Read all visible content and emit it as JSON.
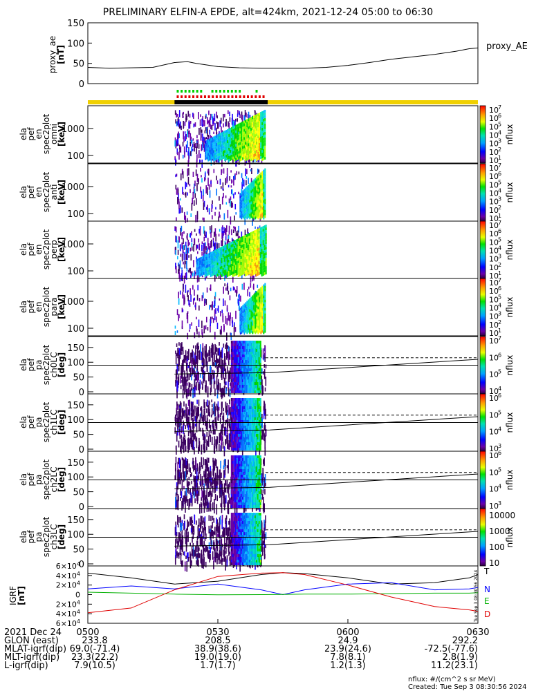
{
  "title": "PRELIMINARY ELFIN-A EPDE, alt=424km, 2021-12-24 05:00 to 06:30",
  "ae_panel": {
    "ylabel": "proxy_ae",
    "yunit": "[nT]",
    "legend": "proxy_AE",
    "yticks": [
      "150",
      "100",
      "50",
      "0"
    ]
  },
  "spec_panels": [
    {
      "ylabel": [
        "ela",
        "pef",
        "en",
        "spec2plot",
        "omni"
      ],
      "yunit": "[keV]",
      "yticks": [
        "1000",
        "100"
      ]
    },
    {
      "ylabel": [
        "ela",
        "pef",
        "en",
        "spec2plot",
        "anti"
      ],
      "yunit": "[keV]",
      "yticks": [
        "1000",
        "100"
      ]
    },
    {
      "ylabel": [
        "ela",
        "pef",
        "en",
        "spec2plot",
        "perp"
      ],
      "yunit": "[keV]",
      "yticks": [
        "1000",
        "100"
      ]
    },
    {
      "ylabel": [
        "ela",
        "pef",
        "en",
        "spec2plot",
        "para"
      ],
      "yunit": "[keV]",
      "yticks": [
        "1000",
        "100"
      ]
    }
  ],
  "pa_panels": [
    {
      "ylabel": [
        "ela",
        "pef",
        "pa",
        "spec2plot",
        "ch0LC"
      ],
      "yunit": "[deg]",
      "yticks": [
        "150",
        "100",
        "50",
        "0"
      ]
    },
    {
      "ylabel": [
        "ela",
        "pef",
        "pa",
        "spec2plot",
        "ch1LC"
      ],
      "yunit": "[deg]",
      "yticks": [
        "150",
        "100",
        "50",
        "0"
      ]
    },
    {
      "ylabel": [
        "ela",
        "pef",
        "pa",
        "spec2plot",
        "ch2LC"
      ],
      "yunit": "[deg]",
      "yticks": [
        "150",
        "100",
        "50",
        "0"
      ]
    },
    {
      "ylabel": [
        "ela",
        "pef",
        "pa",
        "spec2plot",
        "ch3LC"
      ],
      "yunit": "[deg]",
      "yticks": [
        "150",
        "100",
        "50",
        "0"
      ]
    }
  ],
  "colorbars": {
    "unit": "nflux",
    "spec": [
      {
        "major": [
          "10",
          "10",
          "10",
          "10",
          "10",
          "10",
          "10"
        ],
        "exp": [
          "7",
          "6",
          "5",
          "4",
          "3",
          "2",
          "1"
        ]
      },
      {
        "major": [
          "10",
          "10",
          "10",
          "10",
          "10",
          "10",
          "10"
        ],
        "exp": [
          "7",
          "6",
          "5",
          "4",
          "3",
          "2",
          "1"
        ]
      },
      {
        "major": [
          "10",
          "10",
          "10",
          "10",
          "10",
          "10",
          "10"
        ],
        "exp": [
          "7",
          "6",
          "5",
          "4",
          "3",
          "2",
          "1"
        ]
      },
      {
        "major": [
          "10",
          "10",
          "10",
          "10",
          "10",
          "10",
          "10"
        ],
        "exp": [
          "7",
          "6",
          "5",
          "4",
          "3",
          "2",
          "1"
        ]
      }
    ],
    "pa": [
      {
        "major": [
          "10",
          "10",
          "10",
          "10"
        ],
        "exp": [
          "7",
          "6",
          "5",
          "4"
        ]
      },
      {
        "major": [
          "10",
          "10",
          "10",
          "10"
        ],
        "exp": [
          "6",
          "5",
          "4",
          "3"
        ]
      },
      {
        "major": [
          "10",
          "10",
          "10",
          "10"
        ],
        "exp": [
          "6",
          "5",
          "4",
          "3"
        ]
      },
      {
        "plain": [
          "10000",
          "1000",
          "100",
          "10"
        ]
      }
    ]
  },
  "igrf_panel": {
    "ylabel": "IGRF",
    "yunit": "[nT]",
    "yticks": [
      {
        "m": "6",
        "e": "4",
        "sign": ""
      },
      {
        "m": "4",
        "e": "4",
        "sign": ""
      },
      {
        "m": "2",
        "e": "4",
        "sign": ""
      },
      {
        "m": "0",
        "e": "",
        "sign": ""
      },
      {
        "m": "2",
        "e": "4",
        "sign": "−"
      },
      {
        "m": "4",
        "e": "4",
        "sign": "−"
      },
      {
        "m": "6",
        "e": "4",
        "sign": "−"
      }
    ],
    "legend": [
      {
        "label": "T",
        "color": "#000000"
      },
      {
        "label": "N",
        "color": "#0000ff"
      },
      {
        "label": "E",
        "color": "#00b000"
      },
      {
        "label": "D",
        "color": "#e00000"
      }
    ]
  },
  "side_stamp": "Tue Sep 3 08:30:56 2024",
  "footer": {
    "date": "2021 Dec 24",
    "rows": [
      {
        "label": "GLON (east)",
        "values": [
          "233.8",
          "208.5",
          "24.9",
          "292.2"
        ]
      },
      {
        "label": "MLAT-igrf(dip)",
        "values": [
          "69.0(-71.4)",
          "38.9(38.6)",
          "23.9(24.6)",
          "-72.5(-77.6)"
        ]
      },
      {
        "label": "MLT-igrf(dip)",
        "values": [
          "23.3(22.2)",
          "19.0(19.0)",
          "7.8(8.1)",
          "2.8(1.9)"
        ]
      },
      {
        "label": "L-igrf(dip)",
        "values": [
          "7.9(10.5)",
          "1.7(1.7)",
          "1.2(1.3)",
          "11.2(23.1)"
        ]
      }
    ],
    "note_unit": "nflux: #/(cm^2 s sr MeV)",
    "note_created": "Created: Tue Sep  3 08:30:56 2024"
  },
  "chart_data": [
    {
      "type": "line",
      "title": "PRELIMINARY ELFIN-A EPDE, alt=424km, 2021-12-24 05:00 to 06:30",
      "ylabel": "proxy_ae [nT]",
      "xlim": [
        "05:00",
        "06:30"
      ],
      "ylim": [
        0,
        150
      ],
      "series": [
        {
          "name": "proxy_AE",
          "x_min": [
            0,
            5,
            10,
            15,
            20,
            23,
            25,
            30,
            35,
            40,
            45,
            50,
            55,
            60,
            65,
            70,
            75,
            80,
            85,
            88,
            90
          ],
          "y": [
            40,
            38,
            39,
            40,
            52,
            54,
            50,
            42,
            39,
            38,
            38,
            38,
            40,
            45,
            52,
            60,
            66,
            72,
            80,
            86,
            88
          ]
        }
      ]
    },
    {
      "type": "heatmap",
      "panels": [
        "omni",
        "anti",
        "perp",
        "para",
        "ch0LC",
        "ch1LC",
        "ch2LC",
        "ch3LC"
      ],
      "energy_ylim_keV": [
        60,
        7000
      ],
      "pitch_angle_ylim_deg": [
        0,
        180
      ],
      "active_interval_min": [
        20,
        42
      ],
      "flux_colorbar_range": [
        10,
        10000000
      ]
    },
    {
      "type": "line",
      "ylabel": "IGRF [nT]",
      "ylim": [
        -60000,
        60000
      ],
      "xlim": [
        "05:00",
        "06:30"
      ],
      "series": [
        {
          "name": "T",
          "x_min": [
            0,
            10,
            20,
            30,
            40,
            45,
            50,
            60,
            70,
            80,
            88,
            90
          ],
          "y": [
            45000,
            35000,
            22000,
            28000,
            42000,
            46000,
            44000,
            35000,
            22000,
            25000,
            35000,
            42000
          ]
        },
        {
          "name": "N",
          "x_min": [
            0,
            10,
            20,
            30,
            40,
            45,
            50,
            60,
            70,
            80,
            88,
            90
          ],
          "y": [
            12000,
            18000,
            12000,
            22000,
            10000,
            0,
            10000,
            22000,
            25000,
            10000,
            12000,
            15000
          ]
        },
        {
          "name": "E",
          "x_min": [
            0,
            10,
            20,
            30,
            40,
            45,
            50,
            60,
            70,
            80,
            88,
            90
          ],
          "y": [
            5000,
            3000,
            1000,
            -500,
            0,
            500,
            1000,
            1000,
            2000,
            3000,
            3000,
            4000
          ]
        },
        {
          "name": "D",
          "x_min": [
            0,
            10,
            20,
            30,
            40,
            45,
            50,
            60,
            70,
            80,
            88,
            90
          ],
          "y": [
            -38000,
            -28000,
            10000,
            38000,
            45000,
            46000,
            42000,
            20000,
            -5000,
            -25000,
            -32000,
            -35000
          ]
        }
      ]
    }
  ]
}
